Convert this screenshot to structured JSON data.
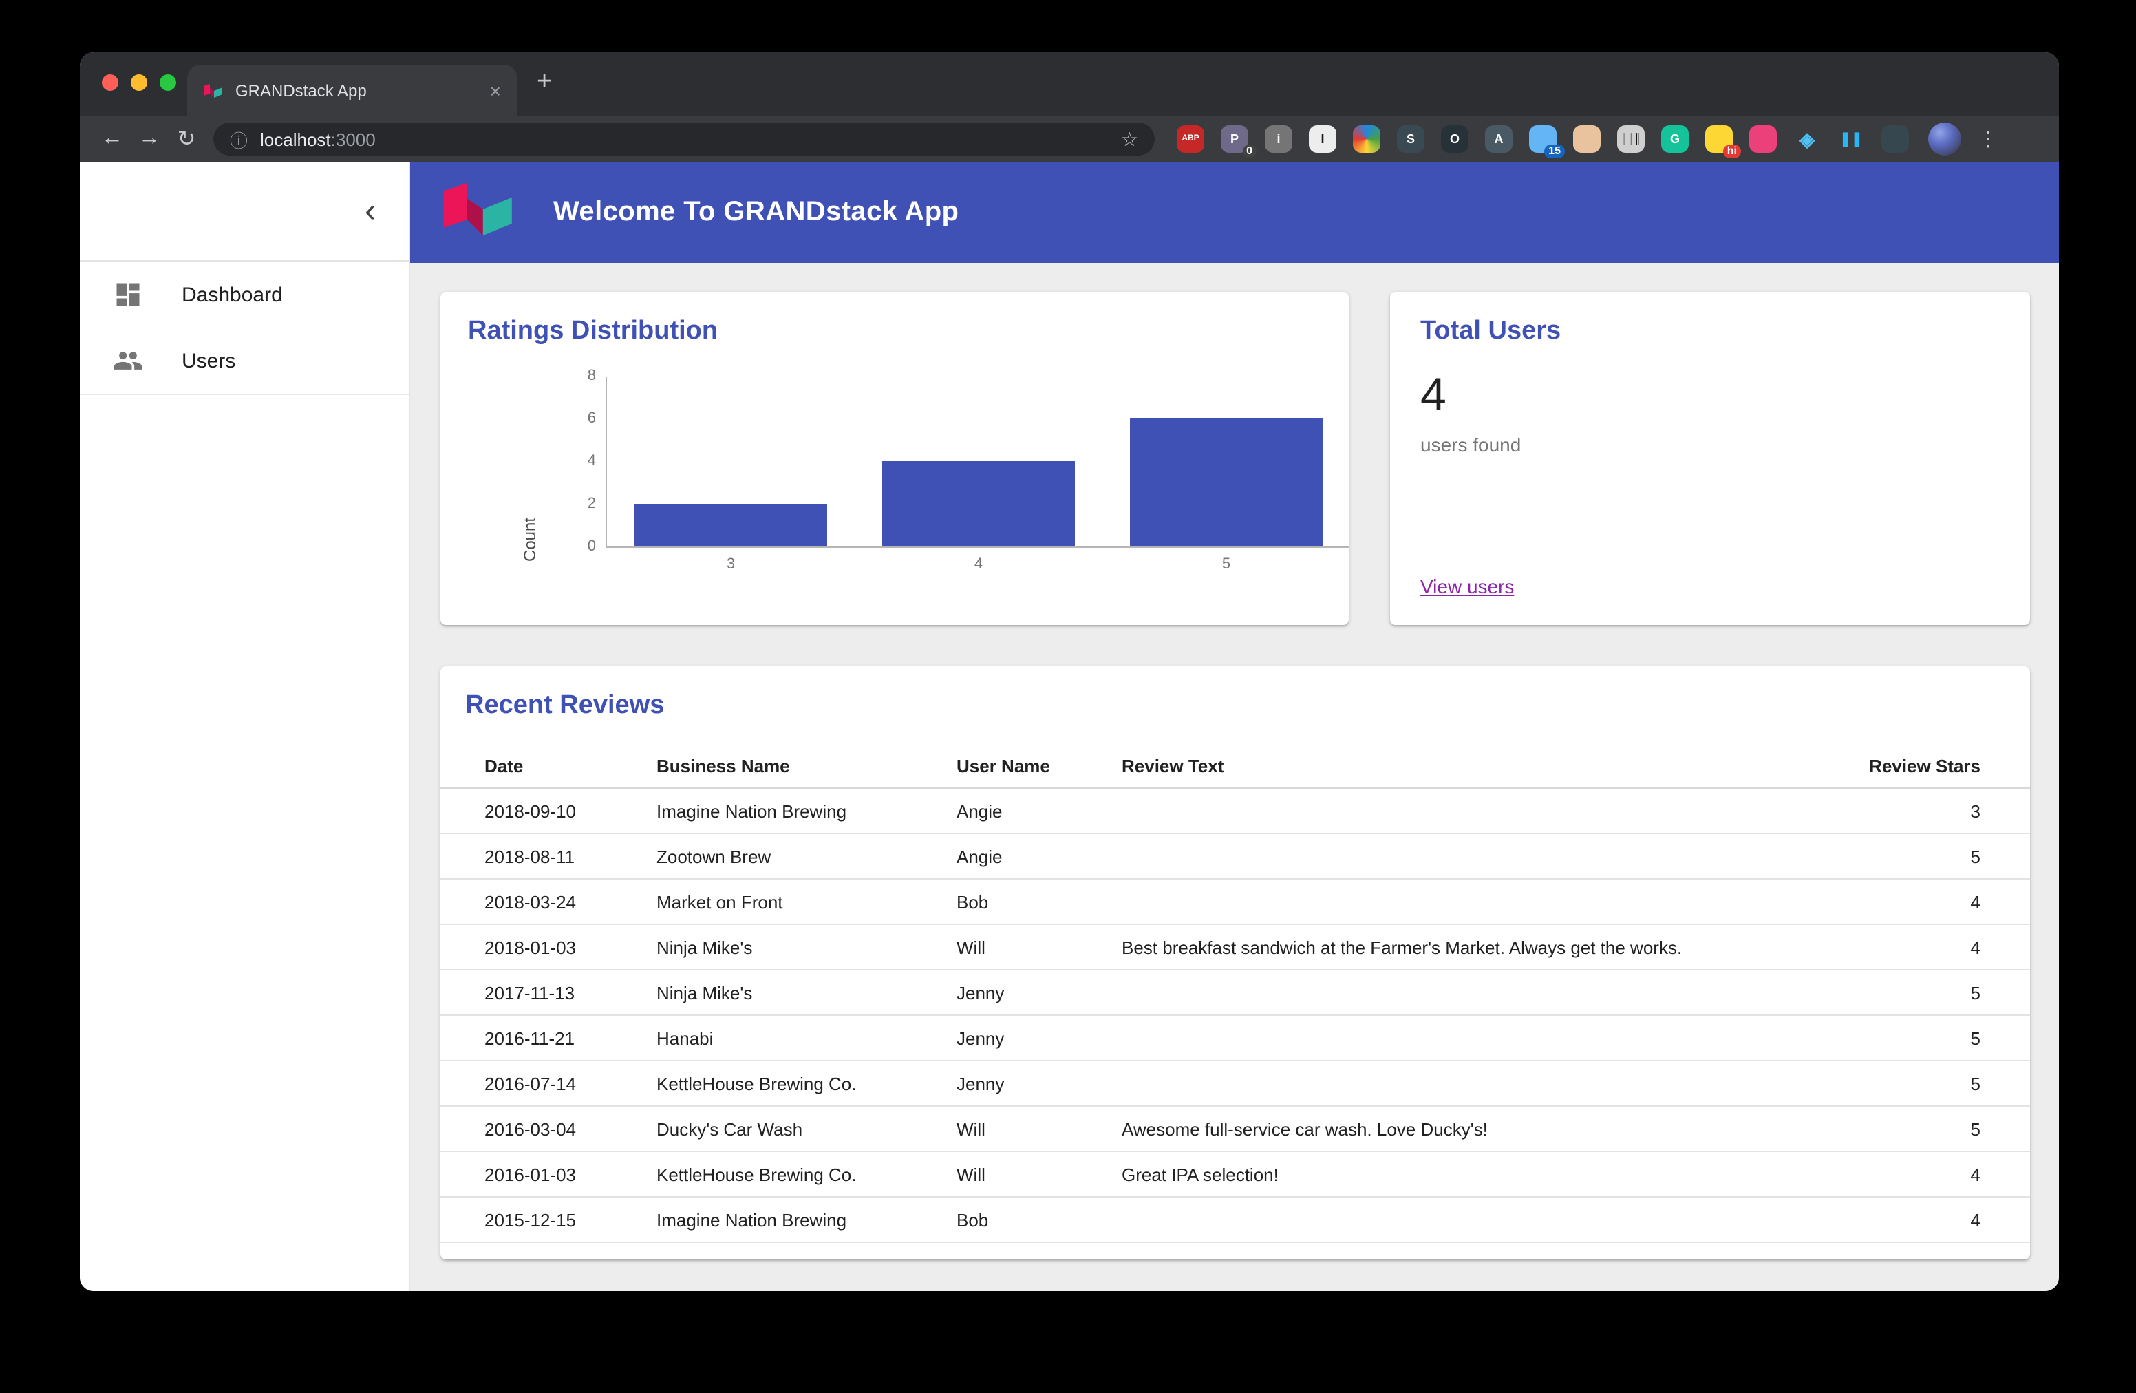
{
  "window": {
    "traffic_lights": {
      "close": "#ff5f57",
      "minimize": "#febc2e",
      "zoom": "#28c840"
    }
  },
  "browser": {
    "tab_title": "GRANDstack App",
    "url_host": "localhost",
    "url_port": ":3000",
    "icons": {
      "back": "←",
      "forward": "→",
      "reload": "↻",
      "star": "☆",
      "info": "ⓘ",
      "close_tab": "×",
      "new_tab": "+",
      "menu": "⋮"
    },
    "extensions": [
      {
        "name": "adblock-plus-icon",
        "glyph": "ABP",
        "bg": "#c62828",
        "fg": "#fff",
        "fs": "6px"
      },
      {
        "name": "password-manager-icon",
        "glyph": "P",
        "bg": "#6f6a8a",
        "badge": "0",
        "badge_bg": "#424242"
      },
      {
        "name": "gray-info-extension-icon",
        "glyph": "i",
        "bg": "#757575"
      },
      {
        "name": "instapaper-icon",
        "glyph": "I",
        "bg": "#ededed",
        "fg": "#1a1a1a"
      },
      {
        "name": "colorful-sphere-icon",
        "glyph": "",
        "bg": "conic-gradient(#1e88e5,#43a047,#fdd835,#e53935,#1e88e5)"
      },
      {
        "name": "stylus-icon",
        "glyph": "S",
        "bg": "#3a4a52"
      },
      {
        "name": "dark-ring-icon",
        "glyph": "O",
        "bg": "#263238"
      },
      {
        "name": "compass-icon",
        "glyph": "A",
        "bg": "#4a5a64"
      },
      {
        "name": "blue-bird-icon",
        "glyph": "",
        "bg": "#64b5f6",
        "badge": "15",
        "badge_bg": "#1565c0"
      },
      {
        "name": "tan-person-icon",
        "glyph": "",
        "bg": "#e8c39e"
      },
      {
        "name": "barcode-icon",
        "glyph": "║║║",
        "bg": "#cfcfcf",
        "fg": "#111",
        "fs": "7px"
      },
      {
        "name": "grammarly-icon",
        "glyph": "G",
        "bg": "#15c39a"
      },
      {
        "name": "hi-badge-icon",
        "glyph": "",
        "bg": "#fdd835",
        "badge": "hi",
        "badge_bg": "#e53935"
      },
      {
        "name": "pink-bird-icon",
        "glyph": "",
        "bg": "#ec407a"
      },
      {
        "name": "blue-layers-icon",
        "glyph": "◈",
        "bg": "transparent",
        "fg": "#4fc3f7",
        "fs": "14px"
      },
      {
        "name": "pause-icon",
        "glyph": "❚❚",
        "bg": "transparent",
        "fg": "#29b6f6",
        "fs": "10px"
      },
      {
        "name": "dark-circle-a-icon",
        "glyph": "",
        "bg": "#37474f"
      }
    ]
  },
  "sidebar": {
    "collapse_icon": "‹",
    "items": [
      {
        "label": "Dashboard",
        "icon": "dashboard-grid-icon"
      },
      {
        "label": "Users",
        "icon": "people-icon"
      }
    ]
  },
  "appbar": {
    "title": "Welcome To GRANDstack App"
  },
  "theme": {
    "primary": "#3f51b5",
    "card_title": "#3f51b5",
    "link_purple": "#8e24aa",
    "bar_color": "#3f51b5",
    "main_bg": "#ededed"
  },
  "cards": {
    "ratings": {
      "title": "Ratings Distribution"
    },
    "totals": {
      "title": "Total Users",
      "value": "4",
      "caption": "users found",
      "link_label": "View users"
    },
    "reviews": {
      "title": "Recent Reviews",
      "columns": [
        "Date",
        "Business Name",
        "User Name",
        "Review Text",
        "Review Stars"
      ],
      "rows": [
        [
          "2018-09-10",
          "Imagine Nation Brewing",
          "Angie",
          "",
          "3"
        ],
        [
          "2018-08-11",
          "Zootown Brew",
          "Angie",
          "",
          "5"
        ],
        [
          "2018-03-24",
          "Market on Front",
          "Bob",
          "",
          "4"
        ],
        [
          "2018-01-03",
          "Ninja Mike's",
          "Will",
          "Best breakfast sandwich at the Farmer's Market. Always get the works.",
          "4"
        ],
        [
          "2017-11-13",
          "Ninja Mike's",
          "Jenny",
          "",
          "5"
        ],
        [
          "2016-11-21",
          "Hanabi",
          "Jenny",
          "",
          "5"
        ],
        [
          "2016-07-14",
          "KettleHouse Brewing Co.",
          "Jenny",
          "",
          "5"
        ],
        [
          "2016-03-04",
          "Ducky's Car Wash",
          "Will",
          "Awesome full-service car wash. Love Ducky's!",
          "5"
        ],
        [
          "2016-01-03",
          "KettleHouse Brewing Co.",
          "Will",
          "Great IPA selection!",
          "4"
        ],
        [
          "2015-12-15",
          "Imagine Nation Brewing",
          "Bob",
          "",
          "4"
        ]
      ]
    }
  },
  "chart_data": {
    "type": "bar",
    "title": "Ratings Distribution",
    "categories": [
      "3",
      "4",
      "5"
    ],
    "values": [
      2,
      4,
      6
    ],
    "xlabel": "",
    "ylabel": "Count",
    "ylim": [
      0,
      8
    ],
    "yticks": [
      0,
      2,
      4,
      6,
      8
    ],
    "bar_color": "#3f51b5",
    "grid": false,
    "legend": false
  }
}
